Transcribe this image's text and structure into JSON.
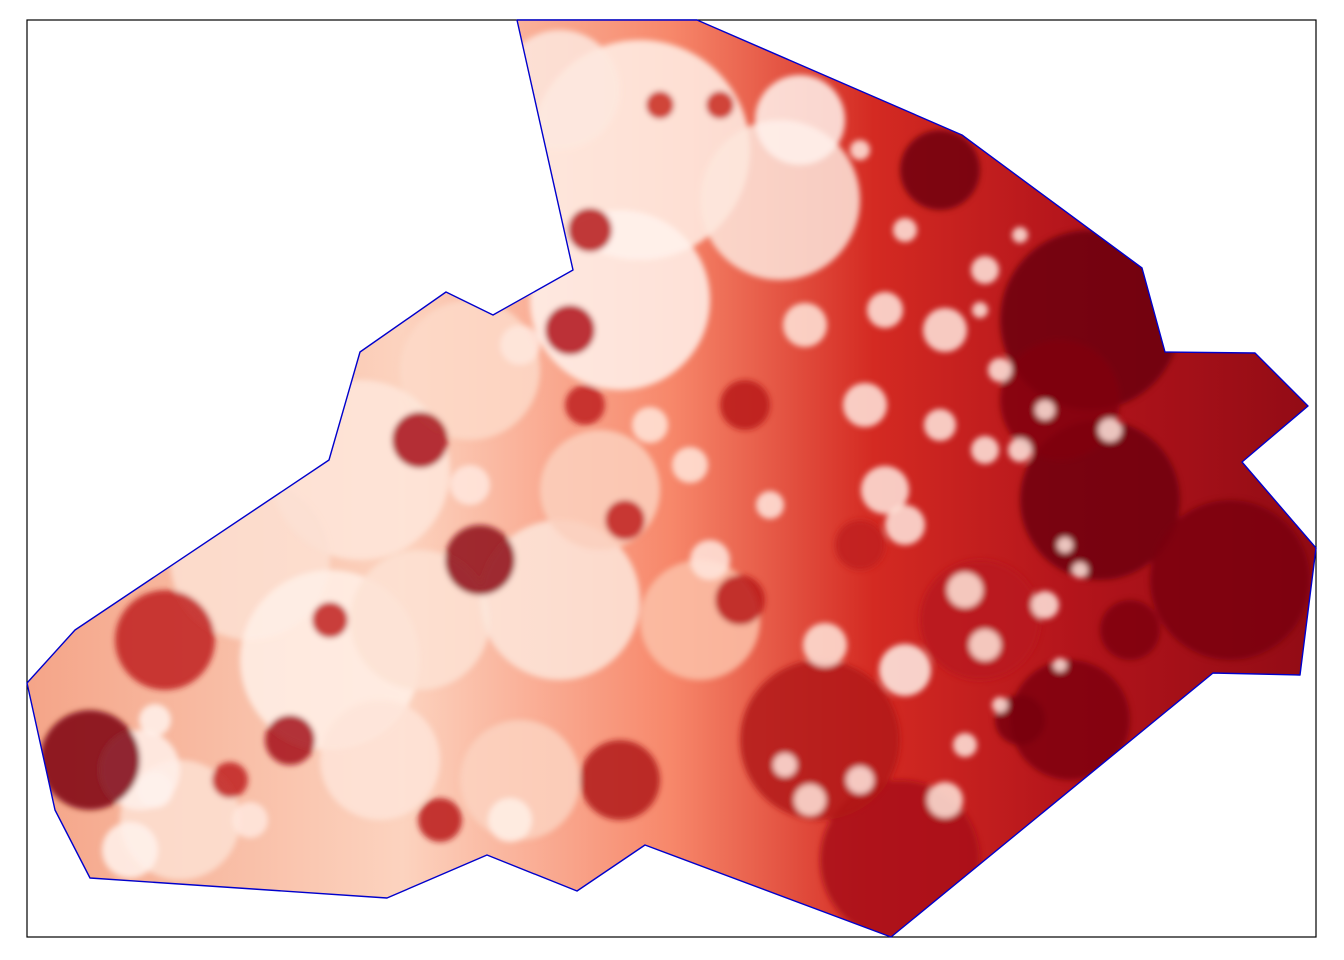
{
  "map": {
    "kind": "interpolated density surface clipped to region boundary",
    "colormap": "Reds",
    "colors": {
      "low": "#fff5f0",
      "mid": "#fb6a4a",
      "high": "#67000d",
      "boundary": "#0000cc",
      "frame": "#000000",
      "background": "#ffffff"
    },
    "legend": "none",
    "axes": "none",
    "labels": "none"
  }
}
